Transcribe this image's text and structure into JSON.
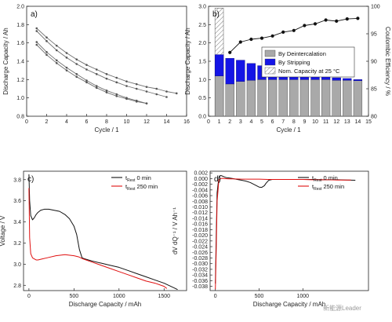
{
  "watermark": {
    "text": "新能源Leader"
  },
  "chart_data": [
    {
      "panel": "a",
      "panel_label": "a)",
      "type": "line",
      "xlabel": "Cycle / 1",
      "ylabel": "Discharge Capacity / Ah",
      "xlim": [
        0,
        16
      ],
      "ylim": [
        0.8,
        2.0
      ],
      "x_ticks": [
        "0",
        "2",
        "4",
        "6",
        "8",
        "10",
        "12",
        "14",
        "16"
      ],
      "y_ticks": [
        "0.8",
        "1.0",
        "1.2",
        "1.4",
        "1.6",
        "1.8",
        "2.0"
      ],
      "series": [
        {
          "x": [
            1,
            2,
            3,
            4,
            5,
            6,
            7,
            8,
            9,
            10,
            11,
            12,
            13,
            14,
            15
          ],
          "y": [
            1.76,
            1.66,
            1.57,
            1.49,
            1.42,
            1.36,
            1.31,
            1.26,
            1.22,
            1.18,
            1.15,
            1.12,
            1.1,
            1.07,
            1.05
          ]
        },
        {
          "x": [
            1,
            2,
            3,
            4,
            5,
            6,
            7,
            8,
            9,
            10,
            11,
            12,
            13,
            14
          ],
          "y": [
            1.73,
            1.62,
            1.52,
            1.44,
            1.37,
            1.31,
            1.26,
            1.21,
            1.17,
            1.13,
            1.1,
            1.07,
            1.04,
            1.01
          ]
        },
        {
          "x": [
            1,
            2,
            3,
            4,
            5,
            6,
            7,
            8,
            9,
            10,
            11,
            12
          ],
          "y": [
            1.61,
            1.5,
            1.41,
            1.33,
            1.26,
            1.19,
            1.13,
            1.08,
            1.04,
            1.0,
            0.97,
            0.94
          ]
        },
        {
          "x": [
            1,
            2,
            3,
            4,
            5,
            6,
            7,
            8,
            9,
            10,
            11,
            12
          ],
          "y": [
            1.58,
            1.47,
            1.38,
            1.3,
            1.23,
            1.17,
            1.11,
            1.06,
            1.02,
            0.99,
            0.96,
            0.94
          ]
        }
      ],
      "colors": {
        "line": "#707070",
        "marker": "#555555"
      }
    },
    {
      "panel": "b",
      "panel_label": "b)",
      "type": "bar",
      "xlabel": "Cycle / 1",
      "ylabel": "Discharge Capacity / Ah",
      "y2label": "Coulombic Efficiency / %",
      "xlim": [
        0,
        15
      ],
      "ylim": [
        0.0,
        3.0
      ],
      "y2lim": [
        80,
        100
      ],
      "x_ticks": [
        "0",
        "1",
        "2",
        "3",
        "4",
        "5",
        "6",
        "7",
        "8",
        "9",
        "10",
        "11",
        "12",
        "13",
        "14",
        "15"
      ],
      "y_ticks": [
        "0.0",
        "0.5",
        "1.0",
        "1.5",
        "2.0",
        "2.5",
        "3.0"
      ],
      "y2_ticks": [
        "80",
        "85",
        "90",
        "95",
        "100"
      ],
      "categories": [
        1,
        2,
        3,
        4,
        5,
        6,
        7,
        8,
        9,
        10,
        11,
        12,
        13,
        14
      ],
      "deintercalation": [
        1.1,
        0.88,
        0.95,
        0.98,
        1.0,
        1.0,
        1.0,
        1.0,
        1.0,
        1.0,
        1.0,
        0.98,
        0.98,
        0.97
      ],
      "stripping": [
        0.58,
        0.7,
        0.58,
        0.46,
        0.38,
        0.3,
        0.25,
        0.19,
        0.15,
        0.1,
        0.08,
        0.07,
        0.05,
        0.03
      ],
      "nominal_capacity": {
        "x": 1,
        "value": 2.95
      },
      "efficiency": {
        "x": [
          2,
          3,
          4,
          5,
          6,
          7,
          8,
          9,
          10,
          11,
          12,
          13,
          14
        ],
        "y": [
          91.6,
          93.5,
          94.0,
          94.2,
          94.6,
          95.3,
          95.6,
          96.5,
          96.8,
          97.5,
          97.3,
          97.7,
          97.8
        ]
      },
      "legend": [
        "By Deintercalation",
        "By Stripping",
        "Nom. Capacity at 25 °C"
      ],
      "colors": {
        "deintercalation": "#a9a9a9",
        "stripping": "#1414e6",
        "hatch": "#777777",
        "efficiency": "#111111"
      }
    },
    {
      "panel": "c",
      "panel_label": "c)",
      "type": "line",
      "xlabel": "Discharge Capacity / mAh",
      "ylabel": "Voltage / V",
      "xlim": [
        -60,
        1750
      ],
      "ylim": [
        2.75,
        3.88
      ],
      "x_ticks": [
        "0",
        "500",
        "1000",
        "1500"
      ],
      "x_tick_values": [
        0,
        500,
        1000,
        1500
      ],
      "y_ticks": [
        "2.8",
        "3.0",
        "3.2",
        "3.4",
        "3.6",
        "3.8"
      ],
      "y_tick_values": [
        2.8,
        3.0,
        3.2,
        3.4,
        3.6,
        3.8
      ],
      "legend": [
        {
          "main": "t",
          "sub": "Rest",
          "value": "0 min"
        },
        {
          "main": "t",
          "sub": "Rest",
          "value": "250 min"
        }
      ],
      "series": [
        {
          "x": [
            0,
            8,
            20,
            40,
            60,
            80,
            100,
            130,
            170,
            220,
            280,
            340,
            400,
            450,
            500,
            530,
            560,
            590,
            620,
            700,
            800,
            900,
            1000,
            1100,
            1200,
            1300,
            1400,
            1500,
            1600,
            1650
          ],
          "y": [
            3.85,
            3.6,
            3.46,
            3.42,
            3.44,
            3.47,
            3.49,
            3.51,
            3.52,
            3.52,
            3.51,
            3.5,
            3.47,
            3.43,
            3.36,
            3.28,
            3.14,
            3.06,
            3.05,
            3.03,
            3.01,
            2.99,
            2.97,
            2.94,
            2.91,
            2.88,
            2.85,
            2.82,
            2.78,
            2.76
          ]
        },
        {
          "x": [
            0,
            8,
            20,
            40,
            60,
            80,
            100,
            150,
            200,
            300,
            400,
            500,
            550,
            600,
            700,
            800,
            900,
            1000,
            1100,
            1200,
            1300,
            1400,
            1500,
            1530
          ],
          "y": [
            3.72,
            3.25,
            3.1,
            3.06,
            3.05,
            3.04,
            3.04,
            3.05,
            3.06,
            3.08,
            3.09,
            3.08,
            3.07,
            3.05,
            3.02,
            2.99,
            2.96,
            2.93,
            2.9,
            2.87,
            2.84,
            2.82,
            2.79,
            2.77
          ]
        }
      ],
      "colors": {
        "0 min": "#111111",
        "250 min": "#e01010"
      }
    },
    {
      "panel": "d",
      "panel_label": "d)",
      "type": "line",
      "xlabel": "Discharge Capacity / mAh",
      "ylabel": "dV dQ⁻¹ / V Ah⁻¹",
      "xlim": [
        -60,
        1750
      ],
      "ylim": [
        -0.0395,
        0.0026
      ],
      "x_ticks": [
        "0",
        "500",
        "1000"
      ],
      "x_tick_values": [
        0,
        500,
        1000
      ],
      "y_ticks": [
        "-0.038",
        "-0.036",
        "-0.034",
        "-0.032",
        "-0.030",
        "-0.028",
        "-0.026",
        "-0.024",
        "-0.022",
        "-0.020",
        "-0.018",
        "-0.016",
        "-0.014",
        "-0.012",
        "-0.010",
        "-0.008",
        "-0.006",
        "-0.004",
        "-0.002",
        "0.000",
        "0.002"
      ],
      "y_tick_values": [
        -0.038,
        -0.036,
        -0.034,
        -0.032,
        -0.03,
        -0.028,
        -0.026,
        -0.024,
        -0.022,
        -0.02,
        -0.018,
        -0.016,
        -0.014,
        -0.012,
        -0.01,
        -0.008,
        -0.006,
        -0.004,
        -0.002,
        0.0,
        0.002
      ],
      "legend": [
        {
          "main": "t",
          "sub": "Rest",
          "value": "0 min"
        },
        {
          "main": "t",
          "sub": "Rest",
          "value": "250 min"
        }
      ],
      "series": [
        {
          "x": [
            0,
            10,
            20,
            40,
            60,
            80,
            100,
            130,
            160,
            200,
            250,
            300,
            350,
            400,
            450,
            500,
            530,
            560,
            580,
            610,
            650,
            700,
            800,
            900,
            1000,
            1100,
            1200,
            1300,
            1400,
            1500,
            1600
          ],
          "y": [
            -0.037,
            -0.02,
            -0.005,
            0.0005,
            0.0011,
            0.0009,
            0.0006,
            0.0003,
            0.0002,
            0.0,
            -0.0003,
            -0.0006,
            -0.0009,
            -0.0014,
            -0.0022,
            -0.003,
            -0.0031,
            -0.0025,
            -0.0016,
            -0.0006,
            -0.0003,
            -0.0003,
            -0.0003,
            -0.0003,
            -0.0003,
            -0.0003,
            -0.0004,
            -0.0004,
            -0.0004,
            -0.0005,
            -0.0006
          ]
        },
        {
          "x": [
            0,
            10,
            20,
            40,
            60,
            80,
            100,
            150,
            200,
            300,
            400,
            500,
            600,
            700,
            800,
            900,
            1000,
            1100,
            1200,
            1300,
            1400,
            1500,
            1550
          ],
          "y": [
            -0.039,
            -0.025,
            -0.008,
            -0.0005,
            0.0,
            0.0001,
            0.0,
            -0.0001,
            -0.0001,
            -0.0002,
            -0.0002,
            -0.0002,
            -0.0003,
            -0.0003,
            -0.0003,
            -0.0003,
            -0.0003,
            -0.0004,
            -0.0004,
            -0.0004,
            -0.0005,
            -0.0005,
            -0.0005
          ]
        }
      ],
      "colors": {
        "0 min": "#111111",
        "250 min": "#e01010"
      }
    }
  ]
}
